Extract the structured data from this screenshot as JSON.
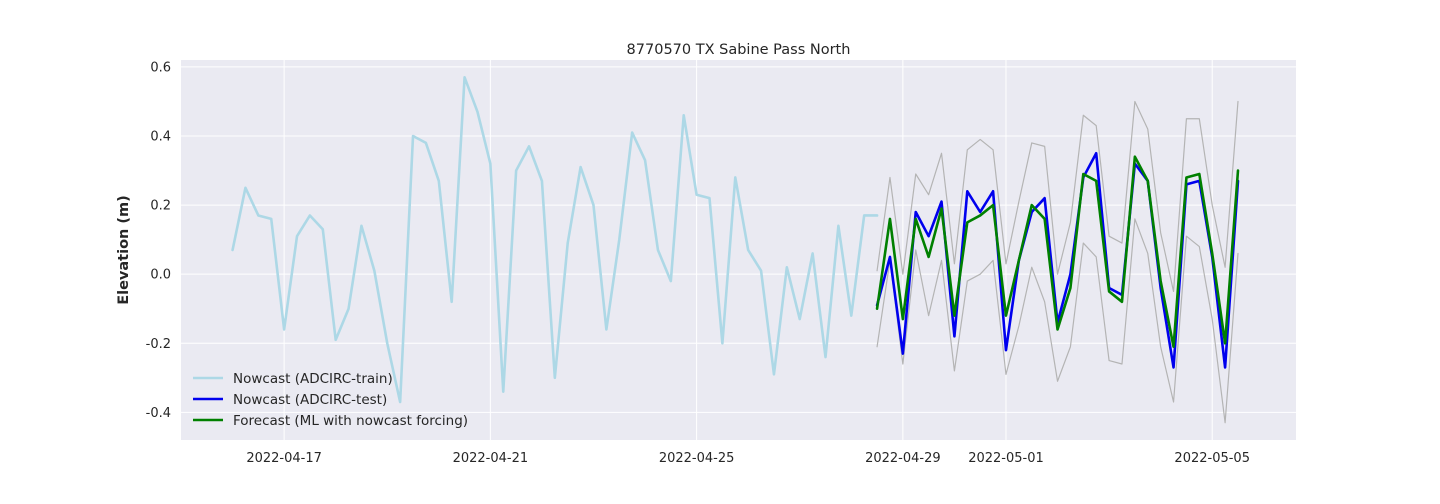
{
  "chart_data": {
    "type": "line",
    "title": "8770570 TX Sabine Pass North",
    "xlabel": "",
    "ylabel": "Elevation (m)",
    "x_axis_type": "date",
    "xlim": [
      "2022-04-15T00:00",
      "2022-05-06T15:00"
    ],
    "ylim": [
      -0.48,
      0.62
    ],
    "xticks": [
      "2022-04-17",
      "2022-04-21",
      "2022-04-25",
      "2022-04-29",
      "2022-05-01",
      "2022-05-05"
    ],
    "yticks": [
      -0.4,
      -0.2,
      0.0,
      0.2,
      0.4,
      0.6
    ],
    "grid": true,
    "legend_position": "lower left",
    "colors": {
      "background": "#eaeaf2",
      "grid": "#ffffff",
      "train": "#add8e6",
      "test": "#0000ee",
      "forecast": "#008000",
      "band": "#b4b4b4"
    },
    "series": [
      {
        "name": "Nowcast (ADCIRC-train)",
        "color": "#add8e6",
        "x": [
          "2022-04-16T00:00",
          "2022-04-16T06:00",
          "2022-04-16T12:00",
          "2022-04-16T18:00",
          "2022-04-17T00:00",
          "2022-04-17T06:00",
          "2022-04-17T12:00",
          "2022-04-17T18:00",
          "2022-04-18T00:00",
          "2022-04-18T06:00",
          "2022-04-18T12:00",
          "2022-04-18T18:00",
          "2022-04-19T00:00",
          "2022-04-19T06:00",
          "2022-04-19T12:00",
          "2022-04-19T18:00",
          "2022-04-20T00:00",
          "2022-04-20T06:00",
          "2022-04-20T12:00",
          "2022-04-20T18:00",
          "2022-04-21T00:00",
          "2022-04-21T06:00",
          "2022-04-21T12:00",
          "2022-04-21T18:00",
          "2022-04-22T00:00",
          "2022-04-22T06:00",
          "2022-04-22T12:00",
          "2022-04-22T18:00",
          "2022-04-23T00:00",
          "2022-04-23T06:00",
          "2022-04-23T12:00",
          "2022-04-23T18:00",
          "2022-04-24T00:00",
          "2022-04-24T06:00",
          "2022-04-24T12:00",
          "2022-04-24T18:00",
          "2022-04-25T00:00",
          "2022-04-25T06:00",
          "2022-04-25T12:00",
          "2022-04-25T18:00",
          "2022-04-26T00:00",
          "2022-04-26T06:00",
          "2022-04-26T12:00",
          "2022-04-26T18:00",
          "2022-04-27T00:00",
          "2022-04-27T06:00",
          "2022-04-27T12:00",
          "2022-04-27T18:00",
          "2022-04-28T00:00",
          "2022-04-28T06:00",
          "2022-04-28T12:00"
        ],
        "y": [
          0.07,
          0.25,
          0.17,
          0.16,
          -0.16,
          0.11,
          0.17,
          0.13,
          -0.19,
          -0.1,
          0.14,
          0.01,
          -0.2,
          -0.37,
          0.4,
          0.38,
          0.27,
          -0.08,
          0.57,
          0.47,
          0.32,
          -0.34,
          0.3,
          0.37,
          0.27,
          -0.3,
          0.09,
          0.31,
          0.2,
          -0.16,
          0.1,
          0.41,
          0.33,
          0.07,
          -0.02,
          0.46,
          0.23,
          0.22,
          -0.2,
          0.28,
          0.07,
          0.01,
          -0.29,
          0.02,
          -0.13,
          0.06,
          -0.24,
          0.14,
          -0.12,
          0.17,
          0.17
        ]
      },
      {
        "name": "Nowcast (ADCIRC-test)",
        "color": "#0000ee",
        "x": [
          "2022-04-28T12:00",
          "2022-04-28T18:00",
          "2022-04-29T00:00",
          "2022-04-29T06:00",
          "2022-04-29T12:00",
          "2022-04-29T18:00",
          "2022-04-30T00:00",
          "2022-04-30T06:00",
          "2022-04-30T12:00",
          "2022-04-30T18:00",
          "2022-05-01T00:00",
          "2022-05-01T06:00",
          "2022-05-01T12:00",
          "2022-05-01T18:00",
          "2022-05-02T00:00",
          "2022-05-02T06:00",
          "2022-05-02T12:00",
          "2022-05-02T18:00",
          "2022-05-03T00:00",
          "2022-05-03T06:00",
          "2022-05-03T12:00",
          "2022-05-03T18:00",
          "2022-05-04T00:00",
          "2022-05-04T06:00",
          "2022-05-04T12:00",
          "2022-05-04T18:00",
          "2022-05-05T00:00",
          "2022-05-05T06:00",
          "2022-05-05T12:00"
        ],
        "y": [
          -0.09,
          0.05,
          -0.23,
          0.18,
          0.11,
          0.21,
          -0.18,
          0.24,
          0.18,
          0.24,
          -0.22,
          0.04,
          0.18,
          0.22,
          -0.14,
          0.0,
          0.28,
          0.35,
          -0.04,
          -0.06,
          0.32,
          0.27,
          -0.04,
          -0.27,
          0.26,
          0.27,
          0.05,
          -0.27,
          0.27
        ]
      },
      {
        "name": "Forecast (ML with nowcast forcing)",
        "color": "#008000",
        "x": [
          "2022-04-28T12:00",
          "2022-04-28T18:00",
          "2022-04-29T00:00",
          "2022-04-29T06:00",
          "2022-04-29T12:00",
          "2022-04-29T18:00",
          "2022-04-30T00:00",
          "2022-04-30T06:00",
          "2022-04-30T12:00",
          "2022-04-30T18:00",
          "2022-05-01T00:00",
          "2022-05-01T06:00",
          "2022-05-01T12:00",
          "2022-05-01T18:00",
          "2022-05-02T00:00",
          "2022-05-02T06:00",
          "2022-05-02T12:00",
          "2022-05-02T18:00",
          "2022-05-03T00:00",
          "2022-05-03T06:00",
          "2022-05-03T12:00",
          "2022-05-03T18:00",
          "2022-05-04T00:00",
          "2022-05-04T06:00",
          "2022-05-04T12:00",
          "2022-05-04T18:00",
          "2022-05-05T00:00",
          "2022-05-05T06:00",
          "2022-05-05T12:00"
        ],
        "y": [
          -0.1,
          0.16,
          -0.13,
          0.16,
          0.05,
          0.19,
          -0.12,
          0.15,
          0.17,
          0.2,
          -0.12,
          0.04,
          0.2,
          0.16,
          -0.16,
          -0.04,
          0.29,
          0.27,
          -0.05,
          -0.08,
          0.34,
          0.27,
          -0.02,
          -0.21,
          0.28,
          0.29,
          0.06,
          -0.2,
          0.3
        ]
      },
      {
        "color": "#b4b4b4",
        "x": [
          "2022-04-28T12:00",
          "2022-04-28T18:00",
          "2022-04-29T00:00",
          "2022-04-29T06:00",
          "2022-04-29T12:00",
          "2022-04-29T18:00",
          "2022-04-30T00:00",
          "2022-04-30T06:00",
          "2022-04-30T12:00",
          "2022-04-30T18:00",
          "2022-05-01T00:00",
          "2022-05-01T06:00",
          "2022-05-01T12:00",
          "2022-05-01T18:00",
          "2022-05-02T00:00",
          "2022-05-02T06:00",
          "2022-05-02T12:00",
          "2022-05-02T18:00",
          "2022-05-03T00:00",
          "2022-05-03T06:00",
          "2022-05-03T12:00",
          "2022-05-03T18:00",
          "2022-05-04T00:00",
          "2022-05-04T06:00",
          "2022-05-04T12:00",
          "2022-05-04T18:00",
          "2022-05-05T00:00",
          "2022-05-05T06:00",
          "2022-05-05T12:00"
        ],
        "y": [
          0.01,
          0.28,
          0.0,
          0.29,
          0.23,
          0.35,
          0.03,
          0.36,
          0.39,
          0.36,
          0.03,
          0.21,
          0.38,
          0.37,
          0.0,
          0.15,
          0.46,
          0.43,
          0.11,
          0.09,
          0.5,
          0.42,
          0.12,
          -0.05,
          0.45,
          0.45,
          0.2,
          0.02,
          0.5
        ]
      },
      {
        "color": "#b4b4b4",
        "x": [
          "2022-04-28T12:00",
          "2022-04-28T18:00",
          "2022-04-29T00:00",
          "2022-04-29T06:00",
          "2022-04-29T12:00",
          "2022-04-29T18:00",
          "2022-04-30T00:00",
          "2022-04-30T06:00",
          "2022-04-30T12:00",
          "2022-04-30T18:00",
          "2022-05-01T00:00",
          "2022-05-01T06:00",
          "2022-05-01T12:00",
          "2022-05-01T18:00",
          "2022-05-02T00:00",
          "2022-05-02T06:00",
          "2022-05-02T12:00",
          "2022-05-02T18:00",
          "2022-05-03T00:00",
          "2022-05-03T06:00",
          "2022-05-03T12:00",
          "2022-05-03T18:00",
          "2022-05-04T00:00",
          "2022-05-04T06:00",
          "2022-05-04T12:00",
          "2022-05-04T18:00",
          "2022-05-05T00:00",
          "2022-05-05T06:00",
          "2022-05-05T12:00"
        ],
        "y": [
          -0.21,
          0.04,
          -0.26,
          0.07,
          -0.12,
          0.04,
          -0.28,
          -0.02,
          0.0,
          0.04,
          -0.29,
          -0.15,
          0.02,
          -0.08,
          -0.31,
          -0.21,
          0.09,
          0.05,
          -0.25,
          -0.26,
          0.16,
          0.06,
          -0.21,
          -0.37,
          0.11,
          0.08,
          -0.13,
          -0.43,
          0.06
        ]
      }
    ]
  }
}
